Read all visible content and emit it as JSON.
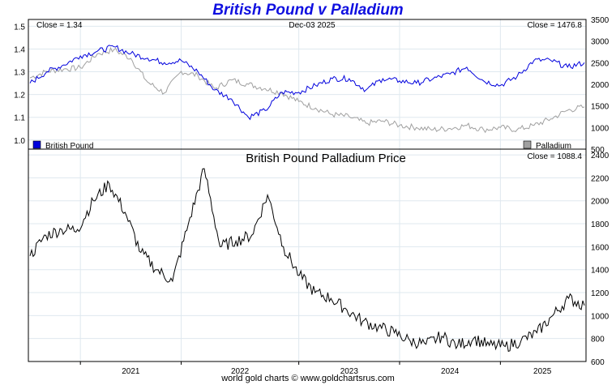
{
  "page": {
    "title": "British Pound v Palladium",
    "footer": "world gold charts © www.goldchartsrus.com"
  },
  "colors": {
    "title": "#1010e0",
    "pound_series": "#0000dd",
    "palladium_series": "#a0a0a0",
    "price_series": "#000000",
    "grid": "#dfe8ef"
  },
  "chart_data": [
    {
      "type": "line",
      "title": "",
      "header": {
        "left": "Close = 1.34",
        "center": "Dec-03  2025",
        "right": "Close = 1476.8"
      },
      "x": [
        "Aug-2020",
        "Oct-2020",
        "Dec-2020",
        "Feb-2021",
        "Apr-2021",
        "Jun-2021",
        "Aug-2021",
        "Oct-2021",
        "Dec-2021",
        "Feb-2022",
        "Apr-2022",
        "Jun-2022",
        "Aug-2022",
        "Sep-2022",
        "Oct-2022",
        "Dec-2022",
        "Feb-2023",
        "Apr-2023",
        "Jun-2023",
        "Aug-2023",
        "Oct-2023",
        "Dec-2023",
        "Feb-2024",
        "Apr-2024",
        "Jun-2024",
        "Aug-2024",
        "Oct-2024",
        "Dec-2024",
        "Feb-2025",
        "Apr-2025",
        "Jun-2025",
        "Aug-2025",
        "Oct-2025",
        "Dec-2025"
      ],
      "xticks": [
        "2021",
        "2022",
        "2023",
        "2024",
        "2025"
      ],
      "legend": {
        "placement": "bottom",
        "entries": [
          "British Pound",
          "Palladium"
        ]
      },
      "series": [
        {
          "name": "British Pound",
          "axis": "left",
          "values": [
            1.25,
            1.3,
            1.33,
            1.37,
            1.39,
            1.41,
            1.38,
            1.36,
            1.34,
            1.35,
            1.3,
            1.22,
            1.18,
            1.1,
            1.13,
            1.21,
            1.21,
            1.24,
            1.27,
            1.27,
            1.22,
            1.27,
            1.26,
            1.25,
            1.27,
            1.29,
            1.32,
            1.26,
            1.24,
            1.28,
            1.35,
            1.35,
            1.32,
            1.34
          ]
        },
        {
          "name": "Palladium",
          "axis": "right",
          "values": [
            2150,
            2300,
            2350,
            2380,
            2700,
            2800,
            2600,
            2050,
            1800,
            2300,
            2200,
            1900,
            2100,
            2000,
            1900,
            1800,
            1600,
            1450,
            1300,
            1250,
            1100,
            1150,
            1050,
            1000,
            950,
            980,
            1050,
            950,
            1000,
            950,
            1050,
            1200,
            1400,
            1476.8
          ]
        }
      ],
      "ylim_left": [
        0.96,
        1.53
      ],
      "ylim_right": [
        500,
        3500
      ],
      "yticks_left": [
        "1.0",
        "1.1",
        "1.2",
        "1.3",
        "1.4",
        "1.5"
      ],
      "yticks_right": [
        "500",
        "1000",
        "1500",
        "2000",
        "2500",
        "3000",
        "3500"
      ],
      "grid": true
    },
    {
      "type": "line",
      "title": "British Pound Palladium Price",
      "header": {
        "right": "Close = 1088.4"
      },
      "x": [
        "Aug-2020",
        "Oct-2020",
        "Dec-2020",
        "Feb-2021",
        "Apr-2021",
        "May-2021",
        "Jul-2021",
        "Sep-2021",
        "Oct-2021",
        "Dec-2021",
        "Feb-2022",
        "Mar-2022",
        "May-2022",
        "Jul-2022",
        "Sep-2022",
        "Oct-2022",
        "Dec-2022",
        "Feb-2023",
        "Apr-2023",
        "Jun-2023",
        "Aug-2023",
        "Oct-2023",
        "Dec-2023",
        "Feb-2024",
        "Apr-2024",
        "Jun-2024",
        "Aug-2024",
        "Oct-2024",
        "Dec-2024",
        "Feb-2025",
        "Apr-2025",
        "Jun-2025",
        "Aug-2025",
        "Sep-2025",
        "Oct-2025",
        "Dec-2025"
      ],
      "xticks": [
        "2021",
        "2022",
        "2023",
        "2024",
        "2025"
      ],
      "series": [
        {
          "name": "",
          "values": [
            1520,
            1700,
            1750,
            1750,
            2000,
            2150,
            1900,
            1550,
            1400,
            1300,
            1800,
            2280,
            1600,
            1650,
            1700,
            2050,
            1600,
            1350,
            1200,
            1150,
            1050,
            950,
            900,
            850,
            780,
            750,
            820,
            740,
            800,
            740,
            730,
            780,
            850,
            1000,
            1150,
            1088.4
          ]
        }
      ],
      "ylim": [
        600,
        2450
      ],
      "yticks": [
        "600",
        "800",
        "1000",
        "1200",
        "1400",
        "1600",
        "1800",
        "2000",
        "2200",
        "2400"
      ],
      "grid": true
    }
  ]
}
